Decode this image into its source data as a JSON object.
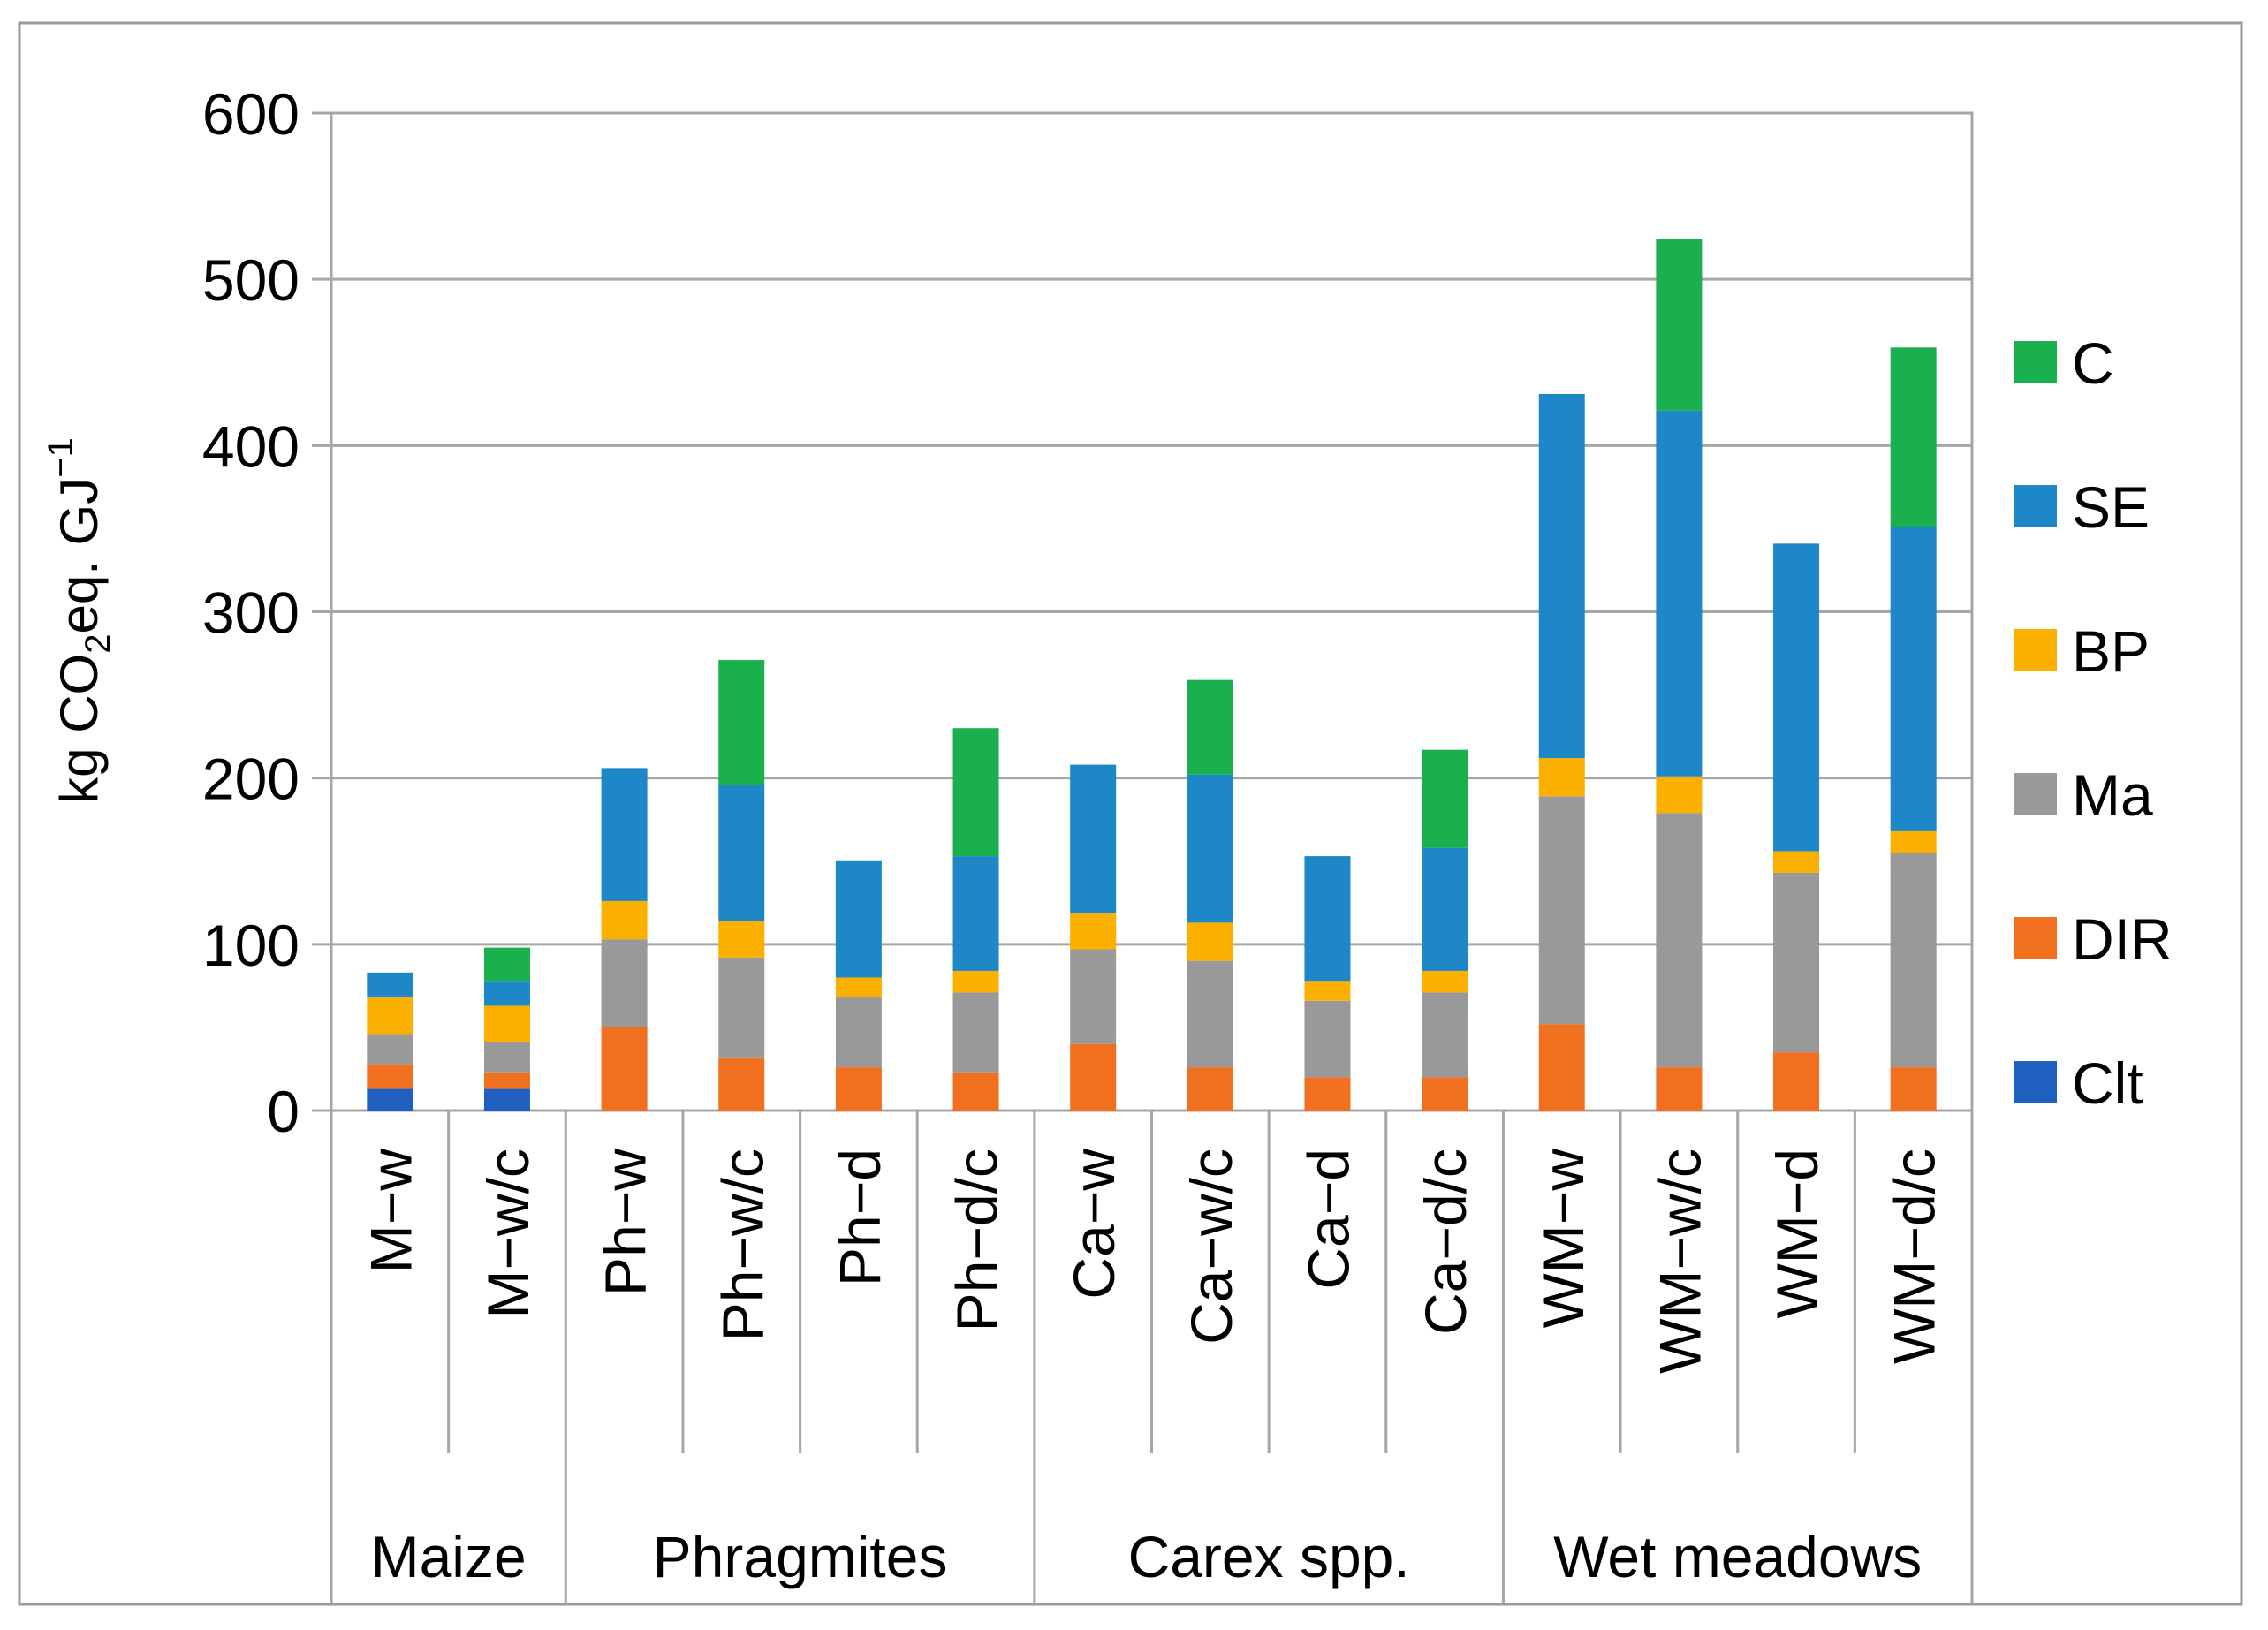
{
  "chart_data": {
    "type": "bar",
    "stacked": true,
    "title": "",
    "xlabel": "",
    "ylabel_parts": {
      "prefix": "kg CO",
      "sub": "2",
      "middle": "eq. GJ",
      "sup": "−1"
    },
    "ylim": [
      0,
      600
    ],
    "yticks": [
      0,
      100,
      200,
      300,
      400,
      500,
      600
    ],
    "grid": true,
    "legend_position": "right",
    "categories": [
      "M−w",
      "M−w/c",
      "Ph−w",
      "Ph−w/c",
      "Ph−d",
      "Ph−d/c",
      "Ca−w",
      "Ca−w/c",
      "Ca−d",
      "Ca−d/c",
      "WM−w",
      "WM−w/c",
      "WM−d",
      "WM−d/c"
    ],
    "groups": [
      {
        "name": "Maize",
        "count": 2
      },
      {
        "name": "Phragmites",
        "count": 4
      },
      {
        "name": "Carex spp.",
        "count": 4
      },
      {
        "name": "Wet meadows",
        "count": 4
      }
    ],
    "series": [
      {
        "name": "Clt",
        "color": "#1f5fbf",
        "values": [
          13,
          13,
          0,
          0,
          0,
          0,
          0,
          0,
          0,
          0,
          0,
          0,
          0,
          0
        ]
      },
      {
        "name": "DIR",
        "color": "#f07020",
        "values": [
          15,
          10,
          50,
          32,
          26,
          23,
          40,
          26,
          20,
          20,
          52,
          26,
          35,
          26
        ]
      },
      {
        "name": "Ma",
        "color": "#999999",
        "values": [
          18,
          18,
          53,
          60,
          42,
          48,
          57,
          64,
          46,
          51,
          137,
          153,
          108,
          129
        ]
      },
      {
        "name": "BP",
        "color": "#fbb000",
        "values": [
          22,
          22,
          23,
          22,
          12,
          13,
          22,
          23,
          12,
          13,
          23,
          22,
          13,
          13
        ]
      },
      {
        "name": "SE",
        "color": "#1e87c8",
        "values": [
          15,
          15,
          80,
          82,
          70,
          69,
          89,
          89,
          75,
          74,
          219,
          220,
          185,
          183
        ]
      },
      {
        "name": "C",
        "color": "#1ab04e",
        "values": [
          0,
          20,
          0,
          75,
          0,
          77,
          0,
          57,
          0,
          59,
          0,
          103,
          0,
          108
        ]
      }
    ],
    "legend_order": [
      "C",
      "SE",
      "BP",
      "Ma",
      "DIR",
      "Clt"
    ]
  }
}
